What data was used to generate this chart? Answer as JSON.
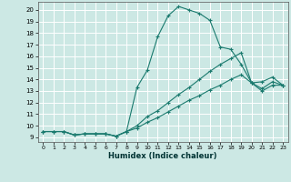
{
  "xlabel": "Humidex (Indice chaleur)",
  "bg_color": "#cce8e4",
  "grid_color": "#ffffff",
  "line_color": "#1a7a6e",
  "x_ticks": [
    0,
    1,
    2,
    3,
    4,
    5,
    6,
    7,
    8,
    9,
    10,
    11,
    12,
    13,
    14,
    15,
    16,
    17,
    18,
    19,
    20,
    21,
    22,
    23
  ],
  "y_ticks": [
    9,
    10,
    11,
    12,
    13,
    14,
    15,
    16,
    17,
    18,
    19,
    20
  ],
  "xlim": [
    -0.5,
    23.5
  ],
  "ylim": [
    8.6,
    20.7
  ],
  "curve1_x": [
    0,
    1,
    2,
    3,
    4,
    5,
    6,
    7,
    8,
    9,
    10,
    11,
    12,
    13,
    14,
    15,
    16,
    17,
    18,
    19,
    20,
    21,
    22,
    23
  ],
  "curve1_y": [
    9.5,
    9.5,
    9.5,
    9.2,
    9.3,
    9.3,
    9.3,
    9.1,
    9.5,
    13.3,
    14.8,
    17.7,
    19.5,
    20.3,
    20.0,
    19.7,
    19.1,
    16.8,
    16.6,
    15.3,
    13.7,
    13.8,
    14.2,
    13.5
  ],
  "curve2_x": [
    0,
    1,
    2,
    3,
    4,
    5,
    6,
    7,
    8,
    9,
    10,
    11,
    12,
    13,
    14,
    15,
    16,
    17,
    18,
    19,
    20,
    21,
    22,
    23
  ],
  "curve2_y": [
    9.5,
    9.5,
    9.5,
    9.2,
    9.3,
    9.3,
    9.3,
    9.1,
    9.5,
    10.0,
    10.8,
    11.3,
    12.0,
    12.7,
    13.3,
    14.0,
    14.7,
    15.3,
    15.8,
    16.3,
    13.7,
    13.2,
    13.8,
    13.5
  ],
  "curve3_x": [
    0,
    1,
    2,
    3,
    4,
    5,
    6,
    7,
    8,
    9,
    10,
    11,
    12,
    13,
    14,
    15,
    16,
    17,
    18,
    19,
    20,
    21,
    22,
    23
  ],
  "curve3_y": [
    9.5,
    9.5,
    9.5,
    9.2,
    9.3,
    9.3,
    9.3,
    9.1,
    9.5,
    9.8,
    10.3,
    10.7,
    11.2,
    11.7,
    12.2,
    12.6,
    13.1,
    13.5,
    14.0,
    14.4,
    13.7,
    13.0,
    13.5,
    13.5
  ]
}
